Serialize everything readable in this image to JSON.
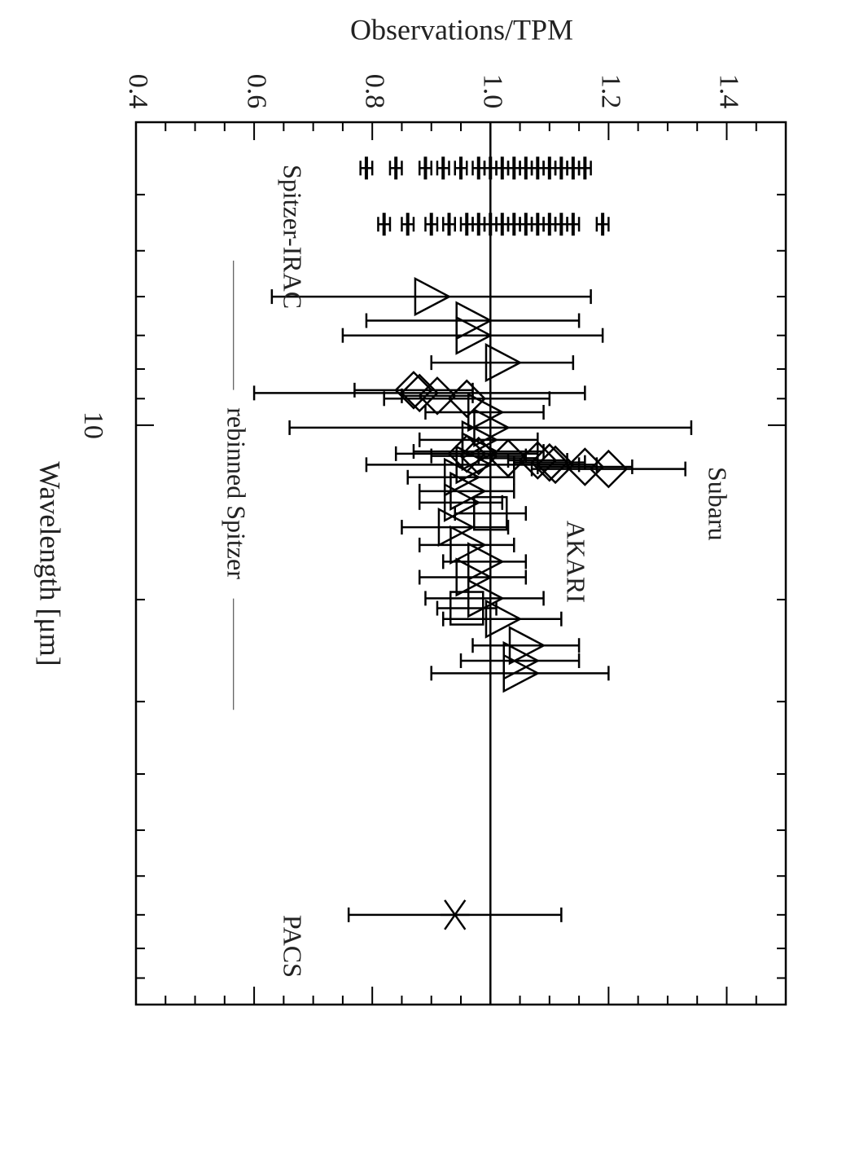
{
  "chart_data": {
    "type": "scatter",
    "orientation": "rotated-90-clockwise",
    "ylabel": "Observations/TPM",
    "xlabel": "Wavelength [μm]",
    "x_scale": "log",
    "ylim": [
      0.4,
      1.5
    ],
    "xlim": [
      3.0,
      100.0
    ],
    "x_tick_labels": [
      {
        "value": 10,
        "label": "10"
      }
    ],
    "y_tick_labels": [
      {
        "value": 0.4,
        "label": "0.4"
      },
      {
        "value": 0.6,
        "label": "0.6"
      },
      {
        "value": 0.8,
        "label": "0.8"
      },
      {
        "value": 1.0,
        "label": "1.0"
      },
      {
        "value": 1.2,
        "label": "1.2"
      },
      {
        "value": 1.4,
        "label": "1.4"
      }
    ],
    "reference_line": 1.0,
    "annotations": [
      {
        "text": "Spitzer-IRAC",
        "x": 3.55,
        "y": 0.66
      },
      {
        "text": "Subaru",
        "x": 11.8,
        "y": 1.38
      },
      {
        "text": "AKARI",
        "x": 14.6,
        "y": 1.14
      },
      {
        "text": "PACS",
        "x": 70.0,
        "y": 0.66
      }
    ],
    "rebinned_legend": {
      "label": "rebinned Spitzer",
      "y": 0.565,
      "x_from": 5.2,
      "x_to": 31.0
    },
    "series": [
      {
        "marker": "dash",
        "values": [
          {
            "x": 3.6,
            "y": 0.79,
            "err": 0.01
          },
          {
            "x": 3.6,
            "y": 0.84,
            "err": 0.01
          },
          {
            "x": 3.6,
            "y": 0.89,
            "err": 0.01
          },
          {
            "x": 3.6,
            "y": 0.92,
            "err": 0.01
          },
          {
            "x": 3.6,
            "y": 0.95,
            "err": 0.01
          },
          {
            "x": 3.6,
            "y": 0.98,
            "err": 0.01
          },
          {
            "x": 3.6,
            "y": 1.0,
            "err": 0.01
          },
          {
            "x": 3.6,
            "y": 1.02,
            "err": 0.01
          },
          {
            "x": 3.6,
            "y": 1.04,
            "err": 0.01
          },
          {
            "x": 3.6,
            "y": 1.06,
            "err": 0.01
          },
          {
            "x": 3.6,
            "y": 1.08,
            "err": 0.01
          },
          {
            "x": 3.6,
            "y": 1.1,
            "err": 0.01
          },
          {
            "x": 3.6,
            "y": 1.12,
            "err": 0.01
          },
          {
            "x": 3.6,
            "y": 1.14,
            "err": 0.01
          },
          {
            "x": 3.6,
            "y": 1.16,
            "err": 0.01
          },
          {
            "x": 4.5,
            "y": 0.82,
            "err": 0.01
          },
          {
            "x": 4.5,
            "y": 0.86,
            "err": 0.01
          },
          {
            "x": 4.5,
            "y": 0.9,
            "err": 0.01
          },
          {
            "x": 4.5,
            "y": 0.93,
            "err": 0.01
          },
          {
            "x": 4.5,
            "y": 0.96,
            "err": 0.01
          },
          {
            "x": 4.5,
            "y": 0.98,
            "err": 0.01
          },
          {
            "x": 4.5,
            "y": 1.0,
            "err": 0.01
          },
          {
            "x": 4.5,
            "y": 1.02,
            "err": 0.01
          },
          {
            "x": 4.5,
            "y": 1.04,
            "err": 0.01
          },
          {
            "x": 4.5,
            "y": 1.06,
            "err": 0.01
          },
          {
            "x": 4.5,
            "y": 1.08,
            "err": 0.01
          },
          {
            "x": 4.5,
            "y": 1.1,
            "err": 0.01
          },
          {
            "x": 4.5,
            "y": 1.12,
            "err": 0.01
          },
          {
            "x": 4.5,
            "y": 1.14,
            "err": 0.01
          },
          {
            "x": 4.5,
            "y": 1.19,
            "err": 0.01
          }
        ]
      },
      {
        "marker": "triangle",
        "values": [
          {
            "x": 6.0,
            "y": 0.9,
            "err": 0.27
          },
          {
            "x": 6.6,
            "y": 0.97,
            "err": 0.18
          },
          {
            "x": 7.0,
            "y": 0.97,
            "err": 0.22
          },
          {
            "x": 7.8,
            "y": 1.02,
            "err": 0.12
          },
          {
            "x": 9.5,
            "y": 0.99,
            "err": 0.1
          },
          {
            "x": 10.1,
            "y": 1.0,
            "err": 0.34
          },
          {
            "x": 10.6,
            "y": 0.98,
            "err": 0.1
          },
          {
            "x": 11.1,
            "y": 0.98,
            "err": 0.11
          },
          {
            "x": 11.7,
            "y": 0.97,
            "err": 0.18
          },
          {
            "x": 12.3,
            "y": 0.95,
            "err": 0.09
          },
          {
            "x": 13.0,
            "y": 0.96,
            "err": 0.08
          },
          {
            "x": 13.6,
            "y": 0.95,
            "err": 0.07
          },
          {
            "x": 15.0,
            "y": 0.94,
            "err": 0.09
          },
          {
            "x": 16.1,
            "y": 0.96,
            "err": 0.08
          },
          {
            "x": 17.2,
            "y": 0.99,
            "err": 0.07
          },
          {
            "x": 18.3,
            "y": 0.97,
            "err": 0.09
          },
          {
            "x": 19.9,
            "y": 0.99,
            "err": 0.1
          },
          {
            "x": 21.6,
            "y": 1.02,
            "err": 0.1
          },
          {
            "x": 24.0,
            "y": 1.06,
            "err": 0.09
          },
          {
            "x": 25.5,
            "y": 1.05,
            "err": 0.1
          },
          {
            "x": 26.8,
            "y": 1.05,
            "err": 0.15
          }
        ]
      },
      {
        "marker": "diamond",
        "values": [
          {
            "x": 8.7,
            "y": 0.87,
            "err": 0.1
          },
          {
            "x": 8.8,
            "y": 0.88,
            "err": 0.28
          },
          {
            "x": 8.9,
            "y": 0.91,
            "err": 0.06
          },
          {
            "x": 9.0,
            "y": 0.96,
            "err": 0.14
          },
          {
            "x": 11.2,
            "y": 0.96,
            "err": 0.12
          },
          {
            "x": 11.3,
            "y": 0.98,
            "err": 0.08
          },
          {
            "x": 11.4,
            "y": 1.03,
            "err": 0.05
          },
          {
            "x": 11.5,
            "y": 1.08,
            "err": 0.05
          },
          {
            "x": 11.6,
            "y": 1.1,
            "err": 0.06
          },
          {
            "x": 11.7,
            "y": 1.11,
            "err": 0.07
          },
          {
            "x": 11.8,
            "y": 1.16,
            "err": 0.08
          },
          {
            "x": 11.9,
            "y": 1.2,
            "err": 0.13
          }
        ]
      },
      {
        "marker": "square",
        "values": [
          {
            "x": 14.2,
            "y": 1.0,
            "err": 0.06
          },
          {
            "x": 20.7,
            "y": 0.96,
            "err": 0.05
          }
        ]
      },
      {
        "marker": "asterisk",
        "values": [
          {
            "x": 70.0,
            "y": 0.94,
            "err": 0.18
          }
        ]
      }
    ]
  }
}
